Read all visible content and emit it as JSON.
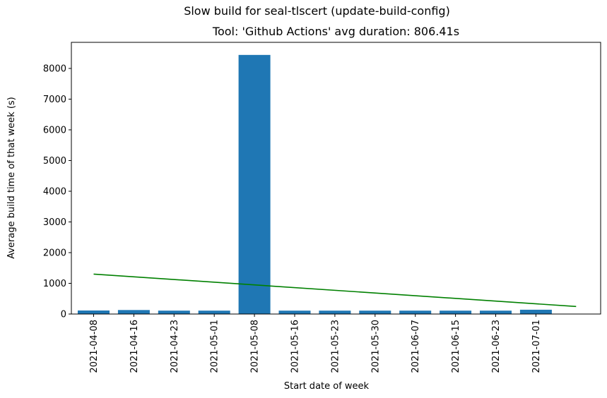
{
  "suptitle": "Slow build for seal-tlscert (update-build-config)",
  "title": "Tool: 'Github Actions' avg duration: 806.41s",
  "colors": {
    "bar": "#1f77b4",
    "trend": "#008000"
  },
  "chart_data": {
    "type": "bar",
    "categories": [
      "2021-04-08",
      "2021-04-16",
      "2021-04-23",
      "2021-05-01",
      "2021-05-08",
      "2021-05-16",
      "2021-05-23",
      "2021-05-30",
      "2021-06-07",
      "2021-06-15",
      "2021-06-23",
      "2021-07-01"
    ],
    "values": [
      115,
      130,
      110,
      110,
      8440,
      110,
      110,
      110,
      110,
      110,
      110,
      140
    ],
    "trend": {
      "start": 1300,
      "end": 245
    },
    "xlabel": "Start date of week",
    "ylabel": "Average build time of that week (s)",
    "ylim": [
      0,
      8850
    ],
    "yticks": [
      0,
      1000,
      2000,
      3000,
      4000,
      5000,
      6000,
      7000,
      8000
    ],
    "grid": false,
    "legend": "none"
  }
}
